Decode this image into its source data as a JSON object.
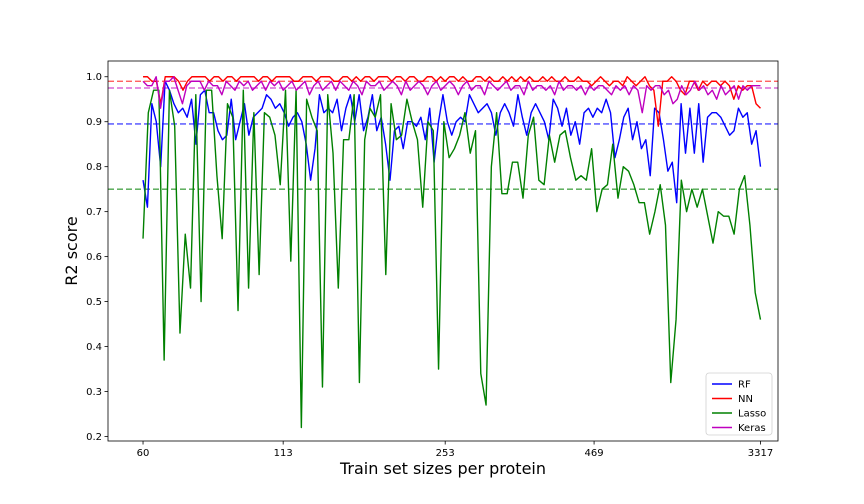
{
  "chart_data": {
    "type": "line",
    "title": "",
    "xlabel": "Train set sizes per protein",
    "ylabel": "R2 score",
    "xlim": [
      -8,
      145
    ],
    "ylim": [
      0.19,
      1.035
    ],
    "yticks": [
      0.2,
      0.3,
      0.4,
      0.5,
      0.6,
      0.7,
      0.8,
      0.9,
      1.0
    ],
    "xtick_positions": [
      0,
      32,
      69,
      103,
      141
    ],
    "xtick_labels": [
      "60",
      "113",
      "253",
      "469",
      "3317"
    ],
    "grid": false,
    "legend_position": "lower-right",
    "series": [
      {
        "name": "RF",
        "color": "#0000ff",
        "mean": 0.895,
        "values": [
          0.77,
          0.71,
          0.94,
          0.9,
          0.8,
          0.99,
          0.97,
          0.94,
          0.92,
          0.93,
          0.91,
          0.95,
          0.85,
          0.96,
          0.97,
          0.92,
          0.92,
          0.88,
          0.86,
          0.87,
          0.95,
          0.86,
          0.9,
          0.94,
          0.87,
          0.91,
          0.92,
          0.93,
          0.96,
          0.95,
          0.93,
          0.94,
          0.92,
          0.89,
          0.91,
          0.92,
          0.9,
          0.85,
          0.77,
          0.84,
          0.96,
          0.92,
          0.93,
          0.92,
          0.95,
          0.88,
          0.93,
          0.96,
          0.9,
          0.96,
          0.88,
          0.91,
          0.96,
          0.88,
          0.91,
          0.85,
          0.77,
          0.88,
          0.89,
          0.84,
          0.9,
          0.9,
          0.89,
          0.91,
          0.86,
          0.93,
          0.81,
          0.9,
          0.96,
          0.9,
          0.87,
          0.9,
          0.91,
          0.9,
          0.96,
          0.94,
          0.92,
          0.93,
          0.94,
          0.92,
          0.87,
          0.92,
          0.94,
          0.92,
          0.89,
          0.96,
          0.91,
          0.87,
          0.92,
          0.94,
          0.92,
          0.9,
          0.86,
          0.95,
          0.93,
          0.89,
          0.93,
          0.87,
          0.9,
          0.85,
          0.92,
          0.93,
          0.91,
          0.93,
          0.92,
          0.95,
          0.92,
          0.82,
          0.86,
          0.91,
          0.93,
          0.86,
          0.9,
          0.84,
          0.86,
          0.78,
          0.93,
          0.92,
          0.86,
          0.79,
          0.81,
          0.72,
          0.94,
          0.83,
          0.93,
          0.83,
          0.94,
          0.81,
          0.91,
          0.92,
          0.92,
          0.91,
          0.89,
          0.87,
          0.88,
          0.93,
          0.91,
          0.92,
          0.85,
          0.88,
          0.8
        ]
      },
      {
        "name": "NN",
        "color": "#ff0000",
        "mean": 0.99,
        "values": [
          1.0,
          1.0,
          0.99,
          0.99,
          0.94,
          1.0,
          1.0,
          1.0,
          0.99,
          0.97,
          0.99,
          1.0,
          1.0,
          1.0,
          1.0,
          0.99,
          1.0,
          1.0,
          0.99,
          1.0,
          1.0,
          0.99,
          1.0,
          1.0,
          1.0,
          1.0,
          0.99,
          1.0,
          1.0,
          0.99,
          1.0,
          1.0,
          1.0,
          1.0,
          0.99,
          0.99,
          1.0,
          1.0,
          1.0,
          0.99,
          1.0,
          1.0,
          1.0,
          0.99,
          0.99,
          1.0,
          1.0,
          0.99,
          1.0,
          0.99,
          1.0,
          1.0,
          0.99,
          1.0,
          1.0,
          1.0,
          0.99,
          1.0,
          1.0,
          0.99,
          1.0,
          1.0,
          0.99,
          0.99,
          1.0,
          1.0,
          0.99,
          1.0,
          0.99,
          1.0,
          1.0,
          0.99,
          1.0,
          0.99,
          0.99,
          1.0,
          1.0,
          0.99,
          1.0,
          0.99,
          0.99,
          1.0,
          0.99,
          1.0,
          0.99,
          1.0,
          0.99,
          1.0,
          0.99,
          0.99,
          1.0,
          0.99,
          1.0,
          0.99,
          0.99,
          1.0,
          0.99,
          0.99,
          1.0,
          0.99,
          0.99,
          0.98,
          0.99,
          1.0,
          0.99,
          0.98,
          0.99,
          0.99,
          0.98,
          1.0,
          0.99,
          0.98,
          0.99,
          1.0,
          0.98,
          0.97,
          0.89,
          0.99,
          0.99,
          1.0,
          0.99,
          0.97,
          0.96,
          0.99,
          0.99,
          0.97,
          0.99,
          0.98,
          0.99,
          0.99,
          0.98,
          0.99,
          0.98,
          0.95,
          0.98,
          0.97,
          0.98,
          0.98,
          0.94,
          0.93
        ]
      },
      {
        "name": "Lasso",
        "color": "#008000",
        "mean": 0.75,
        "values": [
          0.64,
          0.92,
          0.97,
          0.97,
          0.37,
          0.97,
          0.89,
          0.43,
          0.65,
          0.53,
          0.96,
          0.5,
          0.97,
          0.97,
          0.78,
          0.64,
          0.94,
          0.91,
          0.48,
          0.97,
          0.53,
          0.92,
          0.56,
          0.92,
          0.91,
          0.87,
          0.76,
          0.97,
          0.59,
          0.97,
          0.22,
          0.95,
          0.91,
          0.88,
          0.31,
          0.96,
          0.83,
          0.53,
          0.86,
          0.86,
          0.96,
          0.32,
          0.86,
          0.93,
          0.91,
          0.96,
          0.56,
          0.94,
          0.86,
          0.87,
          0.95,
          0.9,
          0.86,
          0.71,
          0.9,
          0.88,
          0.35,
          0.9,
          0.82,
          0.84,
          0.87,
          0.92,
          0.83,
          0.88,
          0.34,
          0.27,
          0.8,
          0.92,
          0.74,
          0.74,
          0.81,
          0.81,
          0.73,
          0.87,
          0.91,
          0.77,
          0.76,
          0.87,
          0.81,
          0.87,
          0.88,
          0.82,
          0.77,
          0.78,
          0.77,
          0.84,
          0.7,
          0.75,
          0.76,
          0.85,
          0.73,
          0.8,
          0.79,
          0.76,
          0.72,
          0.72,
          0.65,
          0.7,
          0.76,
          0.67,
          0.32,
          0.46,
          0.77,
          0.7,
          0.75,
          0.71,
          0.75,
          0.69,
          0.63,
          0.7,
          0.69,
          0.69,
          0.65,
          0.75,
          0.78,
          0.67,
          0.52,
          0.46
        ]
      },
      {
        "name": "Keras",
        "color": "#bf00bf",
        "mean": 0.975,
        "values": [
          0.99,
          0.98,
          0.98,
          1.0,
          0.93,
          0.99,
          0.99,
          1.0,
          0.97,
          0.94,
          0.98,
          0.99,
          0.99,
          0.99,
          0.97,
          0.99,
          0.98,
          0.98,
          0.96,
          0.99,
          0.98,
          0.97,
          0.99,
          0.98,
          0.99,
          0.97,
          0.98,
          0.99,
          0.97,
          0.99,
          0.98,
          0.99,
          0.97,
          0.98,
          0.99,
          0.97,
          0.98,
          0.99,
          0.96,
          0.98,
          0.99,
          0.97,
          0.98,
          0.99,
          0.97,
          0.99,
          0.98,
          0.97,
          0.99,
          0.98,
          0.96,
          0.99,
          0.98,
          0.98,
          0.99,
          0.97,
          0.98,
          0.99,
          0.98,
          0.96,
          0.99,
          0.97,
          0.98,
          0.99,
          0.98,
          0.96,
          0.98,
          0.99,
          0.97,
          0.98,
          0.99,
          0.98,
          0.96,
          0.98,
          0.99,
          0.97,
          0.98,
          0.98,
          0.96,
          0.99,
          0.98,
          0.97,
          0.98,
          0.99,
          0.97,
          0.98,
          0.98,
          0.96,
          0.99,
          0.97,
          0.98,
          0.98,
          0.97,
          0.98,
          0.96,
          0.99,
          0.97,
          0.98,
          0.98,
          0.97,
          0.98,
          0.96,
          0.98,
          0.97,
          0.98,
          0.98,
          0.97,
          0.96,
          0.98,
          0.97,
          0.98,
          0.96,
          0.98,
          0.97,
          0.92,
          0.98,
          0.97,
          0.98,
          0.98,
          0.96,
          0.97,
          0.94,
          0.95,
          0.98,
          0.96,
          0.97,
          0.99,
          0.97,
          0.98,
          0.96,
          0.97,
          0.95,
          0.98,
          0.96,
          0.97,
          0.98,
          0.95,
          0.98,
          0.97,
          0.98,
          0.98,
          0.98
        ]
      }
    ]
  }
}
